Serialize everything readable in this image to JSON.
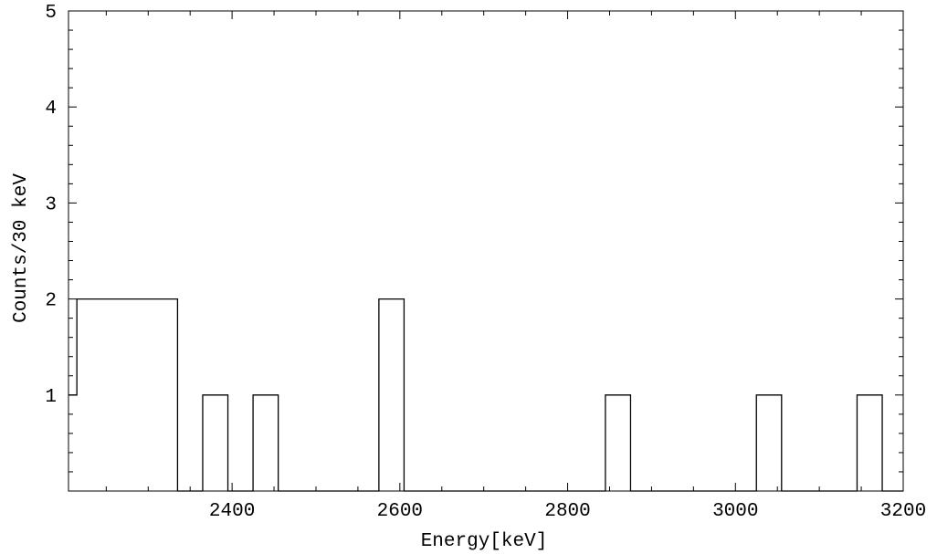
{
  "chart_data": {
    "type": "bar",
    "title": "",
    "xlabel": "Energy[keV]",
    "ylabel": "Counts/30 keV",
    "xlim": [
      2205,
      3200
    ],
    "ylim": [
      0,
      5
    ],
    "xticks": [
      2400,
      2600,
      2800,
      3000,
      3200
    ],
    "xtick_labels": [
      "2400",
      "2600",
      "2800",
      "3000",
      "3200"
    ],
    "yticks": [
      1,
      2,
      3,
      4,
      5
    ],
    "ytick_labels": [
      "1",
      "2",
      "3",
      "4",
      "5"
    ],
    "style": "step-histogram",
    "grid": false,
    "bins": [
      {
        "x0": 2205,
        "x1": 2215,
        "y": 1
      },
      {
        "x0": 2215,
        "x1": 2335,
        "y": 2
      },
      {
        "x0": 2335,
        "x1": 2365,
        "y": 0
      },
      {
        "x0": 2365,
        "x1": 2395,
        "y": 1
      },
      {
        "x0": 2395,
        "x1": 2425,
        "y": 0
      },
      {
        "x0": 2425,
        "x1": 2455,
        "y": 1
      },
      {
        "x0": 2455,
        "x1": 2575,
        "y": 0
      },
      {
        "x0": 2575,
        "x1": 2605,
        "y": 2
      },
      {
        "x0": 2605,
        "x1": 2845,
        "y": 0
      },
      {
        "x0": 2845,
        "x1": 2875,
        "y": 1
      },
      {
        "x0": 2875,
        "x1": 3025,
        "y": 0
      },
      {
        "x0": 3025,
        "x1": 3055,
        "y": 1
      },
      {
        "x0": 3055,
        "x1": 3145,
        "y": 0
      },
      {
        "x0": 3145,
        "x1": 3175,
        "y": 1
      },
      {
        "x0": 3175,
        "x1": 3200,
        "y": 0
      }
    ]
  }
}
